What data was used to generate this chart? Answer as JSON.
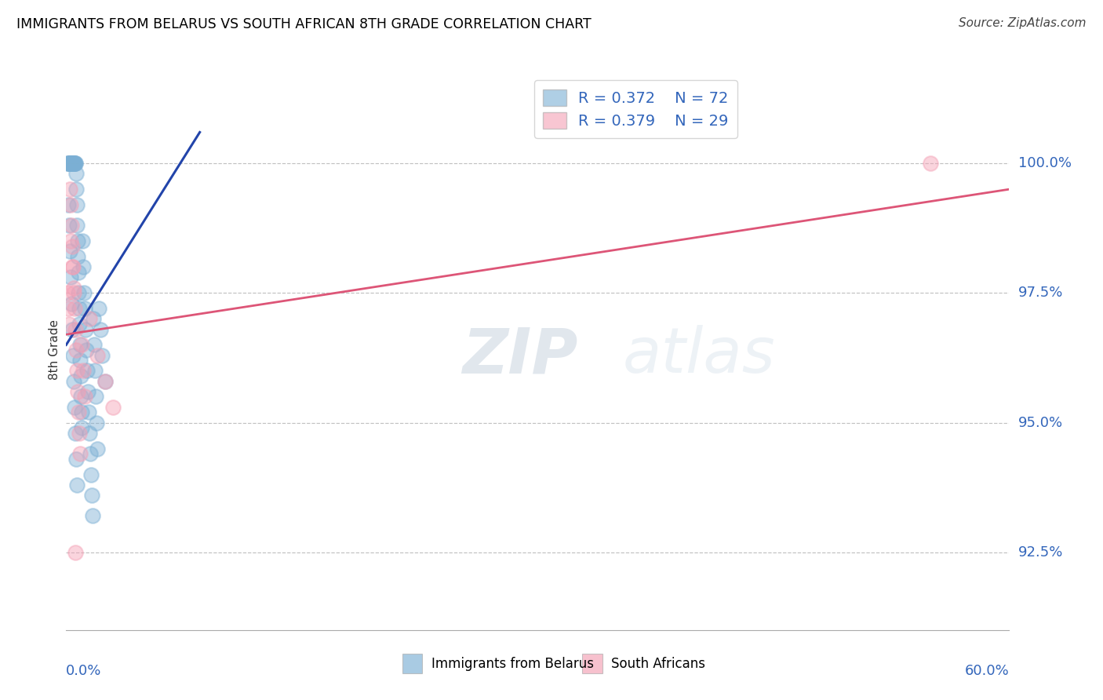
{
  "title": "IMMIGRANTS FROM BELARUS VS SOUTH AFRICAN 8TH GRADE CORRELATION CHART",
  "source": "Source: ZipAtlas.com",
  "ylabel": "8th Grade",
  "yticks": [
    92.5,
    95.0,
    97.5,
    100.0
  ],
  "ytick_labels": [
    "92.5%",
    "95.0%",
    "97.5%",
    "100.0%"
  ],
  "xlim": [
    0.0,
    60.0
  ],
  "ylim": [
    91.0,
    101.8
  ],
  "blue_R": 0.372,
  "blue_N": 72,
  "pink_R": 0.379,
  "pink_N": 29,
  "legend_label_blue": "Immigrants from Belarus",
  "legend_label_pink": "South Africans",
  "blue_color": "#7BAFD4",
  "blue_edge_color": "#5599CC",
  "pink_color": "#F4A0B5",
  "pink_edge_color": "#EE7799",
  "blue_line_color": "#2244AA",
  "pink_line_color": "#DD5577",
  "blue_scatter_x": [
    0.1,
    0.15,
    0.18,
    0.2,
    0.22,
    0.25,
    0.28,
    0.3,
    0.32,
    0.35,
    0.38,
    0.4,
    0.42,
    0.45,
    0.48,
    0.5,
    0.52,
    0.55,
    0.58,
    0.6,
    0.62,
    0.65,
    0.68,
    0.7,
    0.72,
    0.75,
    0.78,
    0.8,
    0.82,
    0.85,
    0.88,
    0.9,
    0.92,
    0.95,
    0.98,
    1.0,
    1.05,
    1.1,
    1.15,
    1.2,
    1.25,
    1.3,
    1.35,
    1.4,
    1.45,
    1.5,
    1.55,
    1.6,
    1.65,
    1.7,
    1.75,
    1.8,
    1.85,
    1.9,
    1.95,
    2.0,
    2.1,
    2.2,
    2.3,
    2.5,
    0.12,
    0.17,
    0.23,
    0.27,
    0.33,
    0.37,
    0.43,
    0.47,
    0.53,
    0.57,
    0.63,
    0.67
  ],
  "blue_scatter_y": [
    100.0,
    100.0,
    100.0,
    100.0,
    100.0,
    100.0,
    100.0,
    100.0,
    100.0,
    100.0,
    100.0,
    100.0,
    100.0,
    100.0,
    100.0,
    100.0,
    100.0,
    100.0,
    100.0,
    100.0,
    99.8,
    99.5,
    99.2,
    98.8,
    98.5,
    98.2,
    97.9,
    97.5,
    97.2,
    96.9,
    96.5,
    96.2,
    95.9,
    95.5,
    95.2,
    94.9,
    98.5,
    98.0,
    97.5,
    97.2,
    96.8,
    96.4,
    96.0,
    95.6,
    95.2,
    94.8,
    94.4,
    94.0,
    93.6,
    93.2,
    97.0,
    96.5,
    96.0,
    95.5,
    95.0,
    94.5,
    97.2,
    96.8,
    96.3,
    95.8,
    99.2,
    98.8,
    98.3,
    97.8,
    97.3,
    96.8,
    96.3,
    95.8,
    95.3,
    94.8,
    94.3,
    93.8
  ],
  "pink_scatter_x": [
    0.1,
    0.15,
    0.2,
    0.25,
    0.3,
    0.35,
    0.4,
    0.45,
    0.5,
    0.55,
    0.6,
    0.65,
    0.7,
    0.75,
    0.8,
    0.85,
    0.9,
    1.0,
    1.1,
    1.2,
    1.5,
    2.0,
    2.5,
    3.0,
    0.28,
    0.38,
    0.48,
    55.0,
    0.58
  ],
  "pink_scatter_y": [
    97.5,
    97.2,
    96.9,
    99.5,
    99.2,
    98.8,
    98.4,
    98.0,
    97.6,
    97.2,
    96.8,
    96.4,
    96.0,
    95.6,
    95.2,
    94.8,
    94.4,
    96.5,
    96.0,
    95.5,
    97.0,
    96.3,
    95.8,
    95.3,
    98.5,
    98.0,
    97.5,
    100.0,
    92.5
  ],
  "blue_line_x": [
    0.0,
    8.5
  ],
  "blue_line_y": [
    96.5,
    100.6
  ],
  "pink_line_x": [
    0.0,
    60.0
  ],
  "pink_line_y": [
    96.7,
    99.5
  ]
}
